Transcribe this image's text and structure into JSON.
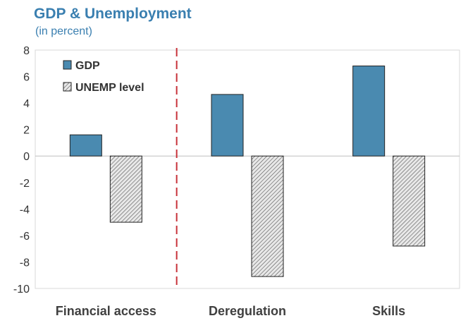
{
  "chart_data": {
    "type": "bar",
    "title": "GDP & Unemployment",
    "subtitle": "(in percent)",
    "categories": [
      "Financial access",
      "Deregulation",
      "Skills"
    ],
    "series": [
      {
        "name": "GDP",
        "values": [
          1.6,
          4.65,
          6.8
        ],
        "color": "#4a8ab0"
      },
      {
        "name": "UNEMP level",
        "values": [
          -5.0,
          -9.1,
          -6.8
        ],
        "color": "#c8c8c8",
        "pattern": "diagonal-hatch"
      }
    ],
    "ylim": [
      -10,
      8
    ],
    "yticks": [
      "8",
      "6",
      "4",
      "2",
      "0",
      "-2",
      "-4",
      "-6",
      "-8",
      "-10"
    ],
    "xlabel": "",
    "ylabel": "",
    "legend": "top-left",
    "grid": false,
    "annotation": {
      "type": "red dashed vertical line",
      "between": [
        "Financial access",
        "Deregulation"
      ],
      "color": "#d9363e"
    }
  }
}
